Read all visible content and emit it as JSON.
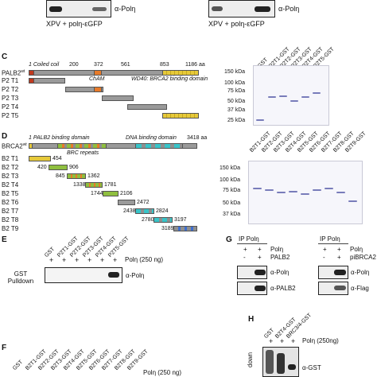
{
  "top": {
    "blot_label_left": "α-Polη",
    "blot_label_right": "α-Polη",
    "caption_left": "XPV + polη-εGFP",
    "caption_right": "XPV + polη-εGFP"
  },
  "panel_c": {
    "letter": "C",
    "construct_wt": "PALB2",
    "construct_wt_sup": "wt",
    "domain_labels": [
      "1 Coiled coil",
      "ChAM",
      "WD40: BRCA2 binding domain"
    ],
    "positions": [
      "200",
      "372",
      "561",
      "853",
      "1186 aa"
    ],
    "rows": [
      "P2 T1",
      "P2 T2",
      "P2 T3",
      "P2 T4",
      "P2 T5"
    ],
    "gel_lanes": [
      "GST",
      "P2T1-GST",
      "P2T2-GST",
      "P2T3-GST",
      "P2T4-GST",
      "P2T5-GST"
    ],
    "markers": [
      "150 kDa",
      "100 kDa",
      "75 kDa",
      "50 kDa",
      "37 kDa",
      "25 kDa"
    ]
  },
  "panel_d": {
    "letter": "D",
    "construct_wt": "BRCA2",
    "construct_wt_sup": "wt",
    "domain_labels": [
      "1 PALB2 binding domain",
      "BRC repeats",
      "DNA binding domain",
      "3418 aa"
    ],
    "rows": [
      "B2 T1",
      "B2 T2",
      "B2 T3",
      "B2 T4",
      "B2 T5",
      "B2 T6",
      "B2 T7",
      "B2 T8",
      "B2 T9"
    ],
    "fragment_labels": [
      "454",
      "420",
      "906",
      "845",
      "1362",
      "1338",
      "1781",
      "1744",
      "2106",
      "2472",
      "2438",
      "2824",
      "2780",
      "3197",
      "3189"
    ],
    "gel_lanes": [
      "B2T1-GST",
      "B2T2-GST",
      "B2T3-GST",
      "B2T4-GST",
      "B2T5-GST",
      "B2T6-GST",
      "B2T7-GST",
      "B2T8-GST",
      "B2T9-GST"
    ],
    "markers": [
      "150 kDa",
      "100 kDa",
      "75 kDa",
      "50 kDa",
      "37 kDa"
    ]
  },
  "panel_e": {
    "letter": "E",
    "lanes": [
      "GST",
      "P2T1-GST",
      "P2T2-GST",
      "P2T3-GST",
      "P2T4-GST",
      "P2T5-GST"
    ],
    "plus_row": [
      "+",
      "+",
      "+",
      "+",
      "+",
      "+"
    ],
    "treatment": "Polη (250 ng)",
    "side_label": "GST Pulldown",
    "blot_label": "α-Polη"
  },
  "panel_g": {
    "letter": "G",
    "ip_left": "IP Polη",
    "ip_right": "IP Polη",
    "left_rows": [
      [
        "+",
        "+",
        "Polη"
      ],
      [
        "-",
        "+",
        "PALB2"
      ]
    ],
    "right_rows": [
      [
        "+",
        "+",
        "Polη"
      ],
      [
        "-",
        "+",
        "piBRCA2"
      ]
    ],
    "left_blots": [
      "α-Polη",
      "α-PALB2"
    ],
    "right_blots": [
      "α-Polη",
      "α-Flag"
    ]
  },
  "panel_f": {
    "letter": "F",
    "lanes": [
      "GST",
      "B2T1-GST",
      "B2T2-GST",
      "B2T3-GST",
      "B2T4-GST",
      "B2T5-GST",
      "B2T6-GST",
      "B2T7-GST",
      "B2T8-GST",
      "B2T9-GST"
    ],
    "treatment": "Polη (250 ng)"
  },
  "panel_h": {
    "letter": "H",
    "lanes": [
      "GST",
      "B2T4-GST",
      "BRC3/4-GST"
    ],
    "plus_row": [
      "+",
      "+",
      "+"
    ],
    "treatment": "Polη (250ng)",
    "side_label": "down",
    "blot_label": "α-GST"
  },
  "colors": {
    "coiled_coil": "#c03a1f",
    "cham": "#e87b2a",
    "wd40": "#e6c93a",
    "brc": "#8fbf3f",
    "dna_binding": "#38c4c8",
    "backbone": "#8f8f8f",
    "gel_band": "#6a6fb3"
  }
}
